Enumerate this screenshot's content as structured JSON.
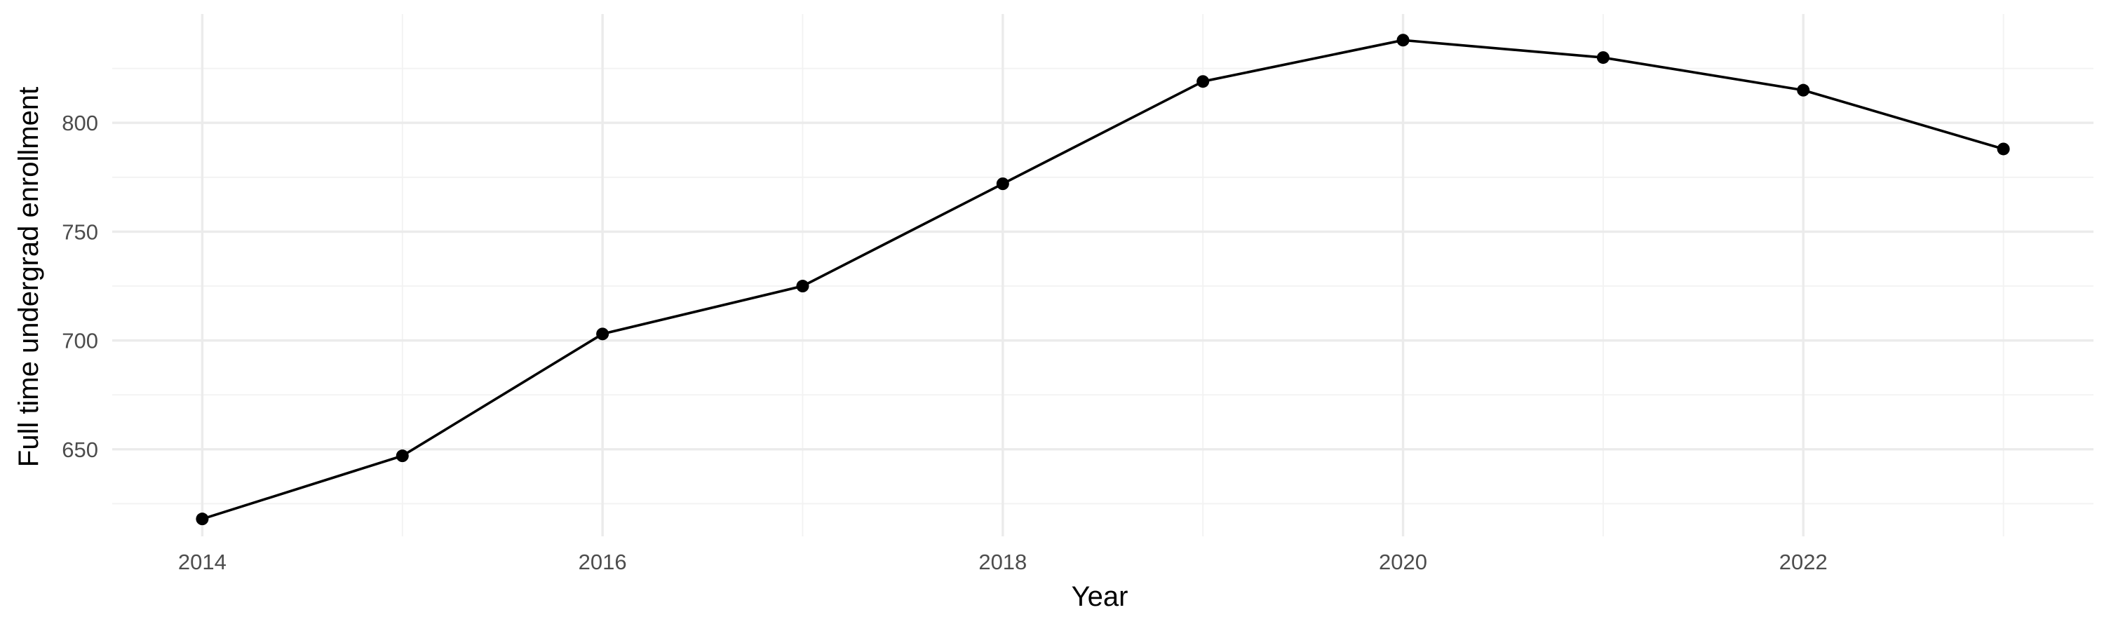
{
  "chart_data": {
    "type": "line",
    "title": "",
    "xlabel": "Year",
    "ylabel": "Full time undergrad enrollment",
    "x": [
      2014,
      2015,
      2016,
      2017,
      2018,
      2019,
      2020,
      2021,
      2022,
      2023
    ],
    "series": [
      {
        "values": [
          618,
          647,
          703,
          725,
          772,
          819,
          838,
          830,
          815,
          788
        ]
      }
    ],
    "xlim": [
      2013.55,
      2023.45
    ],
    "ylim": [
      610,
      850
    ],
    "x_ticks": [
      2014,
      2016,
      2018,
      2020,
      2022
    ],
    "x_minor_ticks": [
      2015,
      2017,
      2019,
      2021,
      2023
    ],
    "y_ticks": [
      650,
      700,
      750,
      800
    ],
    "y_minor_ticks": [
      625,
      675,
      725,
      775,
      825
    ],
    "x_tick_labels": [
      "2014",
      "2016",
      "2018",
      "2020",
      "2022"
    ],
    "y_tick_labels": [
      "650",
      "700",
      "750",
      "800"
    ],
    "grid": true,
    "legend": "none",
    "line_color": "#000000",
    "point_color": "#000000",
    "grid_color": "#ebebeb",
    "background_color": "#ffffff"
  }
}
